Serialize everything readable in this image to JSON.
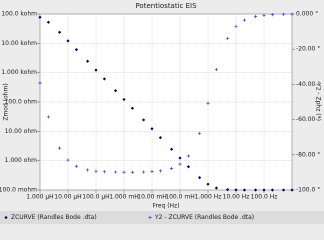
{
  "chart_data": {
    "type": "scatter",
    "title": "Potentiostatic EIS",
    "x_label": "Freq (Hz)",
    "y_label": "Zmod (ohm)",
    "y2_label": "Y2 - Zphz (°)",
    "log_x": true,
    "log_y": true,
    "grid": true,
    "legend": "bottom",
    "x": [
      1e-06,
      2e-06,
      5e-06,
      1e-05,
      2e-05,
      5e-05,
      0.0001,
      0.0002,
      0.0005,
      0.001,
      0.002,
      0.005,
      0.01,
      0.02,
      0.05,
      0.1,
      0.2,
      0.5,
      1,
      2,
      5,
      10,
      20,
      50,
      100,
      200,
      500,
      1000
    ],
    "series": [
      {
        "name": "ZCURVE (Randles Bode .dta)",
        "color": "#000070",
        "marker": "diamond",
        "values": [
          77400,
          52200,
          23800,
          12150,
          6108,
          2448,
          1224,
          612,
          244.8,
          122.4,
          61.2,
          24.48,
          12.24,
          6.12,
          2.45,
          1.228,
          0.62,
          0.2644,
          0.158,
          0.1172,
          0.103,
          0.1007,
          0.1002,
          0.1,
          0.1,
          0.1,
          0.1,
          0.1
        ]
      },
      {
        "name": "Y2 - ZCURVE (Randles Bode .dta)",
        "color": "#3a3ad8",
        "marker": "plus",
        "axis": "y2",
        "values": [
          -39.2,
          -58.5,
          -76.2,
          -83.0,
          -86.5,
          -88.6,
          -89.3,
          -89.6,
          -89.8,
          -89.9,
          -89.9,
          -89.8,
          -89.5,
          -89.1,
          -87.7,
          -85.3,
          -80.7,
          -67.8,
          -50.7,
          -31.5,
          -13.8,
          -7.0,
          -3.5,
          -1.4,
          -0.7,
          -0.35,
          -0.14,
          -0.07
        ]
      }
    ],
    "xlim": [
      1e-06,
      1000
    ],
    "xticks": [
      {
        "value": 1e-06,
        "label": "1.000 µH"
      },
      {
        "value": 1e-05,
        "label": "10.00 µH"
      },
      {
        "value": 0.0001,
        "label": "100.0 µH"
      },
      {
        "value": 0.001,
        "label": "1.000 mH"
      },
      {
        "value": 0.01,
        "label": "10.00 mH"
      },
      {
        "value": 0.1,
        "label": "100.0 mH"
      },
      {
        "value": 1,
        "label": "1.000 Hz"
      },
      {
        "value": 10,
        "label": "10.00 Hz"
      },
      {
        "value": 100,
        "label": "100.0 Hz"
      }
    ],
    "ylim": [
      0.1,
      100000
    ],
    "yticks": [
      {
        "value": 0.1,
        "label": "100.0 mohm"
      },
      {
        "value": 1,
        "label": "1.000 ohm"
      },
      {
        "value": 10,
        "label": "10.00 ohm"
      },
      {
        "value": 100,
        "label": "100.0 ohm"
      },
      {
        "value": 1000,
        "label": "1.000 kohm"
      },
      {
        "value": 10000,
        "label": "10.00 kohm"
      },
      {
        "value": 100000,
        "label": "100.0 kohm"
      }
    ],
    "y2lim": [
      -100,
      0
    ],
    "y2ticks": [
      {
        "value": -100,
        "label": "-100.0 °"
      },
      {
        "value": -80,
        "label": "-80.00 °"
      },
      {
        "value": -60,
        "label": "-60.00 °"
      },
      {
        "value": -40,
        "label": "-40.00 °"
      },
      {
        "value": -20,
        "label": "-20.00 °"
      },
      {
        "value": 0,
        "label": "0.000 °"
      }
    ]
  }
}
